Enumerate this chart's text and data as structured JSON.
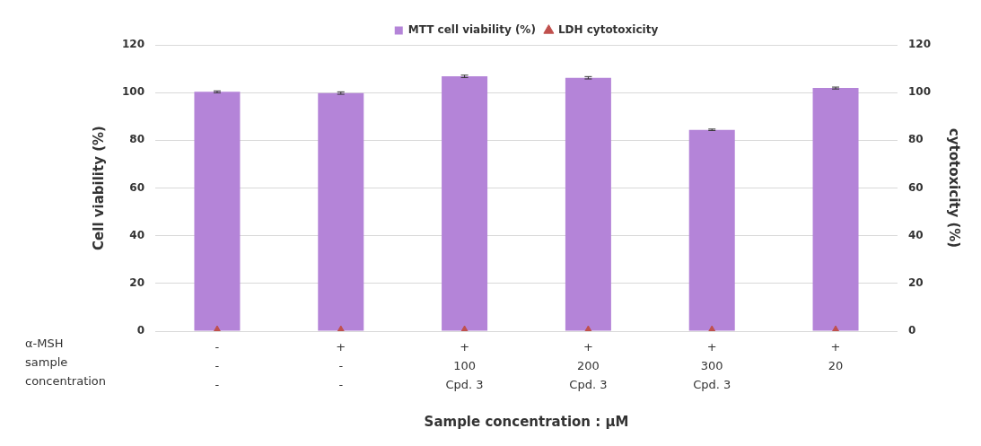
{
  "chart_data": {
    "type": "bar",
    "xlabel": "Sample concentration : µM",
    "ylabel": "Cell viability (%)",
    "y2label": "cytotoxicity (%)",
    "categories": [
      "-\n-\n-",
      "+\n-\n-",
      "+\n100\nCpd. 3",
      "+\n200\nCpd. 3",
      "+\n300\nCpd. 3",
      "+\n20"
    ],
    "series": [
      {
        "name": "MTT cell viability (%)",
        "color": "#b484d8",
        "values": [
          100.3,
          99.8,
          106.8,
          106.2,
          84.4,
          101.9
        ],
        "errors": [
          0.4,
          0.5,
          0.5,
          0.5,
          0.3,
          0.4
        ]
      },
      {
        "name": "LDH cytotoxicity",
        "type": "scatter",
        "axis": "y2",
        "color": "#c0504d",
        "marker": "triangle",
        "values": [
          0,
          0,
          0,
          0,
          0,
          0
        ]
      }
    ],
    "ylim": [
      0,
      120
    ],
    "yticks": [
      0,
      20,
      40,
      60,
      80,
      100,
      120
    ],
    "y2lim": [
      0,
      120
    ],
    "y2ticks": [
      0,
      20,
      40,
      60,
      80,
      100,
      120
    ],
    "grid": "y",
    "legend": "top",
    "annotations": [
      "α-MSH",
      "sample",
      "concentration"
    ]
  }
}
